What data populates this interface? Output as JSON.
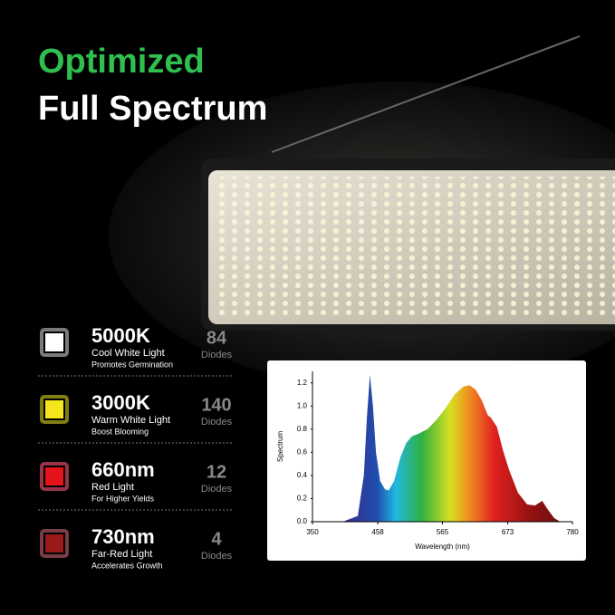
{
  "header": {
    "line1": "Optimized",
    "line2": "Full Spectrum"
  },
  "diodes": [
    {
      "name": "5000K",
      "type": "Cool White Light",
      "benefit": "Promotes Germination",
      "count": 84,
      "unit": "Diodes"
    },
    {
      "name": "3000K",
      "type": "Warm White Light",
      "benefit": "Boost Blooming",
      "count": 140,
      "unit": "Diodes"
    },
    {
      "name": "660nm",
      "type": "Red Light",
      "benefit": "For Higher Yields",
      "count": 12,
      "unit": "Diodes"
    },
    {
      "name": "730nm",
      "type": "Far-Red Light",
      "benefit": "Accelerates Growth",
      "count": 4,
      "unit": "Diodes"
    }
  ],
  "chart_data": {
    "type": "area",
    "x_label": "Wavelength (nm)",
    "y_label": "Spectrum",
    "x": [
      350,
      400,
      425,
      435,
      440,
      445,
      450,
      455,
      462,
      470,
      476,
      485,
      495,
      505,
      515,
      525,
      540,
      555,
      570,
      585,
      600,
      610,
      620,
      630,
      640,
      645,
      655,
      665,
      675,
      690,
      705,
      718,
      730,
      740,
      750,
      760,
      780
    ],
    "values": [
      0,
      0,
      0.05,
      0.4,
      0.9,
      1.27,
      1.0,
      0.6,
      0.35,
      0.28,
      0.27,
      0.35,
      0.55,
      0.68,
      0.74,
      0.76,
      0.8,
      0.88,
      0.98,
      1.1,
      1.17,
      1.18,
      1.14,
      1.05,
      0.92,
      0.9,
      0.82,
      0.62,
      0.45,
      0.25,
      0.15,
      0.14,
      0.18,
      0.1,
      0.03,
      0,
      0
    ],
    "xlim": [
      350,
      780
    ],
    "xticks": [
      350,
      458,
      565,
      673,
      780
    ],
    "ylim": [
      0,
      1.3
    ],
    "yticks": [
      {
        "value": 0,
        "label": "0.0"
      },
      0.2,
      0.4,
      0.6,
      0.8,
      {
        "value": 1,
        "label": "1.0"
      },
      1.2
    ]
  }
}
